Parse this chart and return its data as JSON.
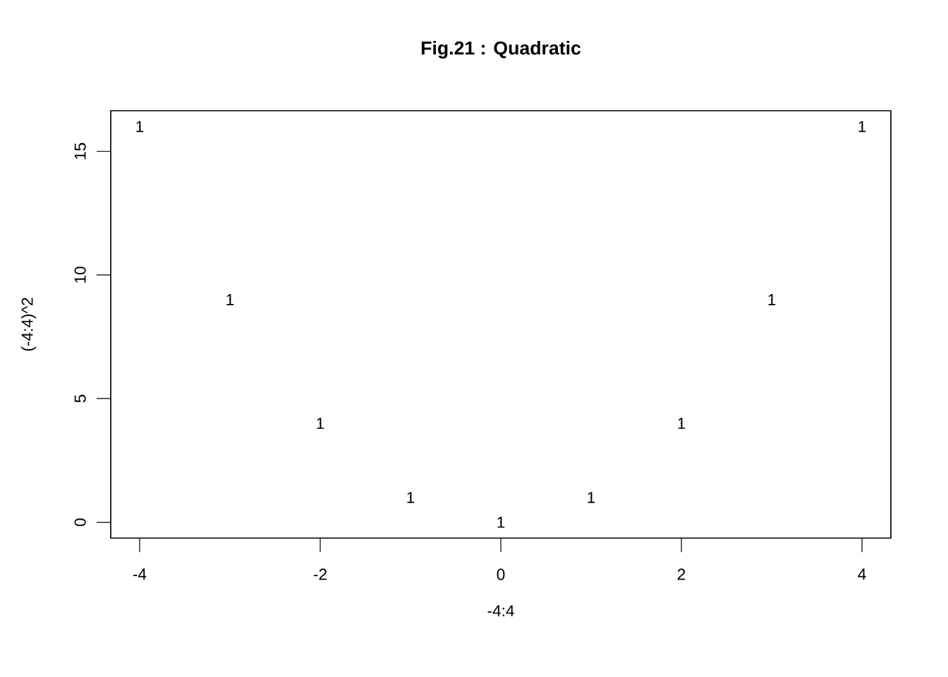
{
  "chart_data": {
    "type": "scatter",
    "title": "Fig.21 : Quadratic",
    "xlabel": "-4:4",
    "ylabel": "(-4:4)^2",
    "x": [
      -4,
      -3,
      -2,
      -1,
      0,
      1,
      2,
      3,
      4
    ],
    "values": [
      16,
      9,
      4,
      1,
      0,
      1,
      4,
      9,
      16
    ],
    "annotations": [
      {
        "text": "1",
        "x": -4,
        "y": 16
      },
      {
        "text": "1",
        "x": -3,
        "y": 9
      },
      {
        "text": "1",
        "x": -2,
        "y": 4
      },
      {
        "text": "1",
        "x": -1,
        "y": 1
      },
      {
        "text": "1",
        "x": 0,
        "y": 0
      },
      {
        "text": "1",
        "x": 1,
        "y": 1
      },
      {
        "text": "1",
        "x": 2,
        "y": 4
      },
      {
        "text": "1",
        "x": 3,
        "y": 9
      },
      {
        "text": "1",
        "x": 4,
        "y": 16
      }
    ],
    "color": "#000000",
    "xlim": [
      -4.32,
      4.32
    ],
    "ylim": [
      -0.64,
      16.64
    ],
    "xticks": [
      -4,
      -2,
      0,
      2,
      4
    ],
    "yticks": [
      0,
      5,
      10,
      15
    ]
  }
}
